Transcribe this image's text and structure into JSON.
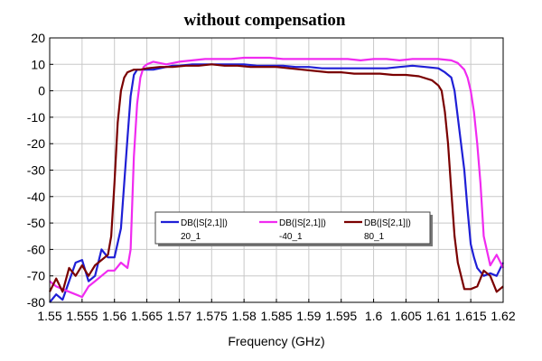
{
  "chart_data": {
    "type": "line",
    "title": "without compensation",
    "xlabel": "Frequency (GHz)",
    "ylabel": "",
    "xlim": [
      1.55,
      1.62
    ],
    "ylim": [
      -80,
      20
    ],
    "xticks": [
      "1.55",
      "1.555",
      "1.56",
      "1.565",
      "1.57",
      "1.575",
      "1.58",
      "1.585",
      "1.59",
      "1.595",
      "1.6",
      "1.605",
      "1.61",
      "1.615",
      "1.62"
    ],
    "yticks": [
      "20",
      "10",
      "0",
      "-10",
      "-20",
      "-30",
      "-40",
      "-50",
      "-60",
      "-70",
      "-80"
    ],
    "grid": true,
    "legend_position": "lower-center",
    "series": [
      {
        "name": "DB(|S[2,1]|)",
        "label": "20_1",
        "color": "#1f1fd6",
        "x": [
          1.55,
          1.551,
          1.552,
          1.553,
          1.554,
          1.555,
          1.556,
          1.557,
          1.558,
          1.559,
          1.56,
          1.561,
          1.5615,
          1.562,
          1.5625,
          1.563,
          1.5635,
          1.564,
          1.565,
          1.566,
          1.567,
          1.568,
          1.569,
          1.57,
          1.572,
          1.574,
          1.576,
          1.578,
          1.58,
          1.582,
          1.584,
          1.586,
          1.588,
          1.59,
          1.592,
          1.594,
          1.596,
          1.598,
          1.6,
          1.602,
          1.604,
          1.606,
          1.608,
          1.61,
          1.611,
          1.612,
          1.6125,
          1.613,
          1.6135,
          1.614,
          1.6145,
          1.615,
          1.6155,
          1.616,
          1.617,
          1.618,
          1.619,
          1.62
        ],
        "values": [
          -80,
          -77,
          -79,
          -72,
          -65,
          -64,
          -72,
          -70,
          -60,
          -63,
          -63,
          -52,
          -35,
          -18,
          -2,
          6,
          8,
          8,
          8,
          8,
          8.5,
          9,
          9.5,
          9.5,
          10,
          10,
          10,
          10,
          10,
          9.5,
          9.5,
          9.5,
          9,
          9,
          8.5,
          8.5,
          8.5,
          8.5,
          8.5,
          8.5,
          9,
          9.5,
          9,
          8.5,
          7,
          5,
          0,
          -10,
          -20,
          -30,
          -45,
          -58,
          -63,
          -67,
          -70,
          -69,
          -70,
          -65
        ]
      },
      {
        "name": "DB(|S[2,1]|)",
        "label": "-40_1",
        "color": "#f02bf0",
        "x": [
          1.55,
          1.551,
          1.552,
          1.553,
          1.554,
          1.555,
          1.556,
          1.557,
          1.558,
          1.559,
          1.56,
          1.561,
          1.562,
          1.5625,
          1.563,
          1.5635,
          1.564,
          1.5645,
          1.565,
          1.566,
          1.568,
          1.57,
          1.572,
          1.574,
          1.576,
          1.578,
          1.58,
          1.582,
          1.584,
          1.586,
          1.588,
          1.59,
          1.592,
          1.594,
          1.596,
          1.598,
          1.6,
          1.602,
          1.604,
          1.606,
          1.608,
          1.61,
          1.612,
          1.613,
          1.614,
          1.6145,
          1.615,
          1.6155,
          1.616,
          1.6165,
          1.617,
          1.618,
          1.619,
          1.62
        ],
        "values": [
          -72,
          -74,
          -75,
          -76,
          -77,
          -78,
          -74,
          -72,
          -70,
          -68,
          -68,
          -65,
          -67,
          -60,
          -25,
          -5,
          5,
          9,
          10,
          11,
          10,
          11,
          11.5,
          12,
          12,
          12,
          12.5,
          12.5,
          12.5,
          12,
          12,
          12,
          12,
          12,
          12,
          11.5,
          12,
          12,
          11.5,
          12,
          12,
          12,
          11.5,
          10.5,
          8,
          5,
          0,
          -8,
          -20,
          -35,
          -55,
          -66,
          -62,
          -67
        ]
      },
      {
        "name": "DB(|S[2,1]|)",
        "label": "80_1",
        "color": "#7a0000",
        "x": [
          1.55,
          1.551,
          1.552,
          1.553,
          1.554,
          1.555,
          1.556,
          1.557,
          1.558,
          1.559,
          1.5595,
          1.56,
          1.5605,
          1.561,
          1.5615,
          1.562,
          1.5625,
          1.563,
          1.5635,
          1.564,
          1.565,
          1.567,
          1.569,
          1.571,
          1.573,
          1.575,
          1.577,
          1.579,
          1.581,
          1.583,
          1.585,
          1.587,
          1.589,
          1.591,
          1.593,
          1.595,
          1.597,
          1.599,
          1.601,
          1.603,
          1.605,
          1.607,
          1.609,
          1.61,
          1.6105,
          1.611,
          1.6115,
          1.612,
          1.6125,
          1.613,
          1.614,
          1.615,
          1.616,
          1.617,
          1.618,
          1.619,
          1.62
        ],
        "values": [
          -76,
          -71,
          -76,
          -67,
          -70,
          -66,
          -70,
          -66,
          -64,
          -62,
          -55,
          -35,
          -12,
          0,
          5,
          7,
          7.5,
          8,
          8,
          8,
          8.5,
          9,
          9,
          9.5,
          9.5,
          10,
          9.5,
          9.5,
          9,
          9,
          9,
          8.5,
          8,
          7.5,
          7,
          7,
          6.5,
          6.5,
          6.5,
          6,
          6,
          5.5,
          4,
          2,
          0,
          -8,
          -20,
          -38,
          -55,
          -65,
          -75,
          -75,
          -74,
          -68,
          -70,
          -76,
          -74
        ]
      }
    ]
  }
}
